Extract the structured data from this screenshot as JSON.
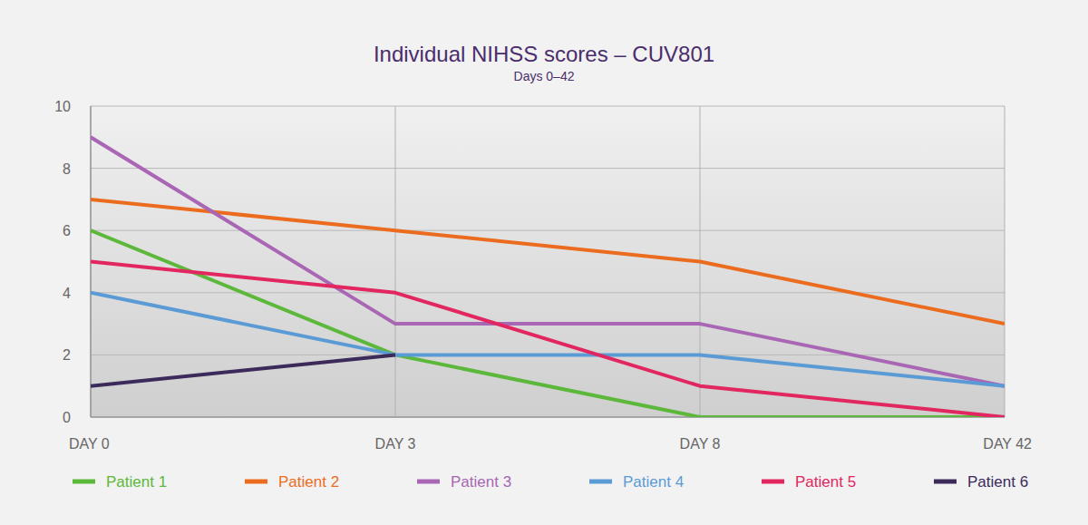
{
  "chart_data": {
    "type": "line",
    "title": "Individual NIHSS scores – CUV801",
    "subtitle": "Days 0–42",
    "categories": [
      "DAY 0",
      "DAY 3",
      "DAY 8",
      "DAY 42"
    ],
    "series": [
      {
        "name": "Patient 1",
        "color": "#5cb83a",
        "values": [
          6,
          2,
          0,
          0
        ]
      },
      {
        "name": "Patient 2",
        "color": "#ec6c1f",
        "values": [
          7,
          6,
          5,
          3
        ]
      },
      {
        "name": "Patient 3",
        "color": "#a866b4",
        "values": [
          9,
          3,
          3,
          1
        ]
      },
      {
        "name": "Patient 4",
        "color": "#5b9bd5",
        "values": [
          4,
          2,
          2,
          1
        ]
      },
      {
        "name": "Patient 5",
        "color": "#e2265f",
        "values": [
          5,
          4,
          1,
          0
        ]
      },
      {
        "name": "Patient 6",
        "color": "#3b2a5a",
        "values": [
          1,
          2,
          null,
          null
        ]
      }
    ],
    "ylim": [
      0,
      10
    ],
    "yticks": [
      0,
      2,
      4,
      6,
      8,
      10
    ],
    "grid": true,
    "legend": "bottom"
  }
}
